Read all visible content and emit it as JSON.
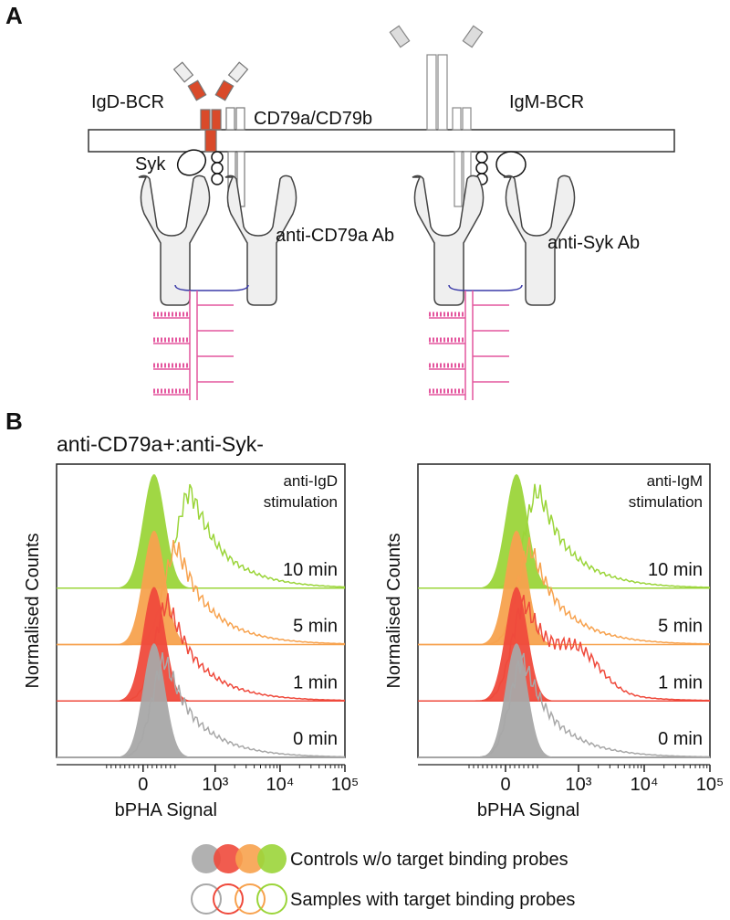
{
  "panels": {
    "a": "A",
    "b": "B"
  },
  "diagram": {
    "igd_bcr": "IgD-BCR",
    "cd79": "CD79a/CD79b",
    "syk": "Syk",
    "anti_cd79a": "anti-CD79a Ab",
    "igm_bcr": "IgM-BCR",
    "anti_syk": "anti-Syk Ab"
  },
  "histogram_title": "anti-CD79a+:anti-Syk-",
  "row_colors": [
    "#9bd53a",
    "#f7a24e",
    "#ef4a3c",
    "#a8a8a8"
  ],
  "plots": [
    {
      "stimulation": [
        "anti-IgD",
        "stimulation"
      ],
      "times": [
        "10 min",
        "5 min",
        "1 min",
        "0 min"
      ],
      "x_label": "bPHA Signal",
      "y_label": "Normalised Counts",
      "xticks": [
        0,
        {
          "value": 1000,
          "label": "10³"
        },
        {
          "value": 10000,
          "label": "10⁴"
        },
        {
          "value": 100000,
          "label": "10⁵"
        }
      ]
    },
    {
      "stimulation": [
        "anti-IgM",
        "stimulation"
      ],
      "times": [
        "10 min",
        "5 min",
        "1 min",
        "0 min"
      ],
      "x_label": "bPHA Signal",
      "y_label": "Normalised Counts",
      "xticks": [
        0,
        {
          "value": 1000,
          "label": "10³"
        },
        {
          "value": 10000,
          "label": "10⁴"
        },
        {
          "value": 100000,
          "label": "10⁵"
        }
      ]
    }
  ],
  "legend": {
    "controls": "Controls w/o target binding probes",
    "samples": "Samples with target binding probes"
  }
}
